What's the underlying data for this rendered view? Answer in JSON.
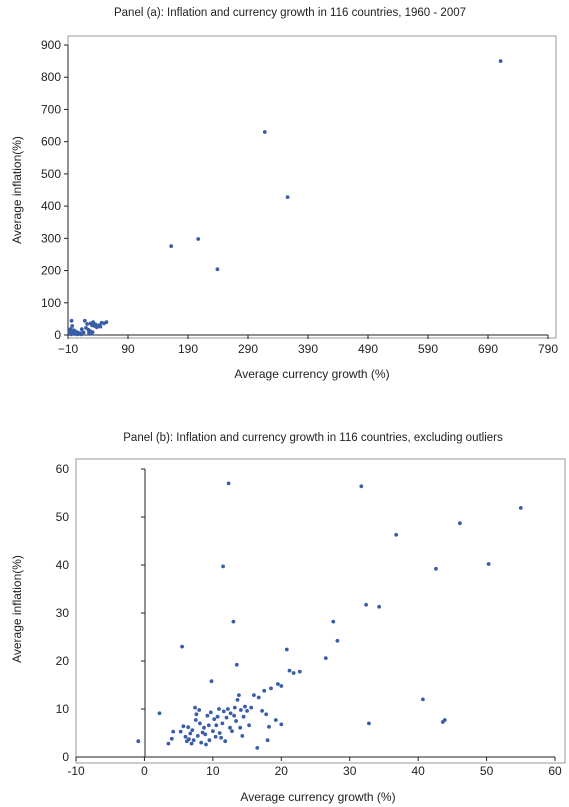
{
  "chart_data": [
    {
      "type": "scatter",
      "title": "Panel (a): Inflation and currency growth in 116 countries, 1960 - 2007",
      "xlabel": "Average currency growth (%)",
      "ylabel": "Average inflation(%)",
      "xlim": [
        -10,
        790
      ],
      "ylim": [
        0,
        900
      ],
      "xticks": [
        "−10",
        "90",
        "190",
        "290",
        "390",
        "490",
        "590",
        "690",
        "790"
      ],
      "yticks": [
        "0",
        "100",
        "200",
        "300",
        "400",
        "500",
        "600",
        "700",
        "800",
        "900"
      ],
      "marker_color": "#3a5da8",
      "points": [
        [
          711,
          850
        ],
        [
          318,
          630
        ],
        [
          356,
          428
        ],
        [
          207,
          298
        ],
        [
          162,
          276
        ],
        [
          239,
          204
        ],
        [
          -4,
          44
        ],
        [
          -3,
          28
        ],
        [
          -6,
          18
        ],
        [
          -8,
          10
        ],
        [
          -7,
          5
        ],
        [
          -5,
          2
        ],
        [
          -2,
          8
        ],
        [
          -1,
          15
        ],
        [
          0,
          3
        ],
        [
          2,
          12
        ],
        [
          3,
          5
        ],
        [
          5,
          2
        ],
        [
          6,
          8
        ],
        [
          8,
          3
        ],
        [
          10,
          6
        ],
        [
          12,
          2
        ],
        [
          13,
          18
        ],
        [
          14,
          5
        ],
        [
          16,
          8
        ],
        [
          18,
          44
        ],
        [
          20,
          22
        ],
        [
          22,
          34
        ],
        [
          24,
          16
        ],
        [
          25,
          7
        ],
        [
          26,
          3
        ],
        [
          28,
          36
        ],
        [
          30,
          30
        ],
        [
          32,
          40
        ],
        [
          34,
          28
        ],
        [
          36,
          33
        ],
        [
          38,
          24
        ],
        [
          42,
          30
        ],
        [
          44,
          26
        ],
        [
          46,
          38
        ],
        [
          50,
          36
        ],
        [
          54,
          40
        ],
        [
          27,
          12
        ],
        [
          31,
          9
        ],
        [
          29,
          4
        ]
      ]
    },
    {
      "type": "scatter",
      "title": "Panel (b): Inflation and currency growth in 116 countries, excluding outliers",
      "xlabel": "Average currency growth (%)",
      "ylabel": "Average inflation(%)",
      "xlim": [
        -10,
        60
      ],
      "ylim": [
        0,
        60
      ],
      "xticks": [
        "-10",
        "0",
        "10",
        "20",
        "30",
        "40",
        "50",
        "60"
      ],
      "yticks": [
        "0",
        "10",
        "20",
        "30",
        "40",
        "50",
        "60"
      ],
      "marker_color": "#3a5da8",
      "points": [
        [
          -0.9,
          3.3
        ],
        [
          2.2,
          9.1
        ],
        [
          3.5,
          2.8
        ],
        [
          4.0,
          3.8
        ],
        [
          4.2,
          5.3
        ],
        [
          5.3,
          5.3
        ],
        [
          5.5,
          23.0
        ],
        [
          5.7,
          6.4
        ],
        [
          6.0,
          4.2
        ],
        [
          6.2,
          3.3
        ],
        [
          6.4,
          6.2
        ],
        [
          6.5,
          3.7
        ],
        [
          6.7,
          4.9
        ],
        [
          6.9,
          2.8
        ],
        [
          7.0,
          5.6
        ],
        [
          7.2,
          3.5
        ],
        [
          7.4,
          10.3
        ],
        [
          7.5,
          7.7
        ],
        [
          7.6,
          8.9
        ],
        [
          7.8,
          4.4
        ],
        [
          8.0,
          9.8
        ],
        [
          8.1,
          7.0
        ],
        [
          8.3,
          3.0
        ],
        [
          8.5,
          5.1
        ],
        [
          8.7,
          6.1
        ],
        [
          8.9,
          4.7
        ],
        [
          9.0,
          2.6
        ],
        [
          9.2,
          8.6
        ],
        [
          9.4,
          6.6
        ],
        [
          9.5,
          3.5
        ],
        [
          9.7,
          9.3
        ],
        [
          9.8,
          15.8
        ],
        [
          10.0,
          5.4
        ],
        [
          10.2,
          7.9
        ],
        [
          10.4,
          4.2
        ],
        [
          10.5,
          6.6
        ],
        [
          10.7,
          8.4
        ],
        [
          10.9,
          10.0
        ],
        [
          11.0,
          5.0
        ],
        [
          11.2,
          4.0
        ],
        [
          11.4,
          7.0
        ],
        [
          11.5,
          39.7
        ],
        [
          11.6,
          9.5
        ],
        [
          11.8,
          3.3
        ],
        [
          12.0,
          8.2
        ],
        [
          12.2,
          10.0
        ],
        [
          12.3,
          57.0
        ],
        [
          12.5,
          6.1
        ],
        [
          12.6,
          9.1
        ],
        [
          12.8,
          5.4
        ],
        [
          13.0,
          28.2
        ],
        [
          13.1,
          8.6
        ],
        [
          13.2,
          10.3
        ],
        [
          13.4,
          7.5
        ],
        [
          13.5,
          19.2
        ],
        [
          13.6,
          11.9
        ],
        [
          13.8,
          12.9
        ],
        [
          14.0,
          6.1
        ],
        [
          14.1,
          9.8
        ],
        [
          14.3,
          4.4
        ],
        [
          14.5,
          8.4
        ],
        [
          14.7,
          10.5
        ],
        [
          15.0,
          9.6
        ],
        [
          15.3,
          6.6
        ],
        [
          15.6,
          10.3
        ],
        [
          16.0,
          12.9
        ],
        [
          16.5,
          1.9
        ],
        [
          16.7,
          12.4
        ],
        [
          17.2,
          9.6
        ],
        [
          17.5,
          13.8
        ],
        [
          17.8,
          8.9
        ],
        [
          18.0,
          3.5
        ],
        [
          18.2,
          6.3
        ],
        [
          18.5,
          14.3
        ],
        [
          19.2,
          7.7
        ],
        [
          19.5,
          15.2
        ],
        [
          20.0,
          6.8
        ],
        [
          20.0,
          14.8
        ],
        [
          20.8,
          22.4
        ],
        [
          21.2,
          18.0
        ],
        [
          21.8,
          17.5
        ],
        [
          22.7,
          17.8
        ],
        [
          26.5,
          20.6
        ],
        [
          27.6,
          28.2
        ],
        [
          28.2,
          24.2
        ],
        [
          31.7,
          56.4
        ],
        [
          32.4,
          31.7
        ],
        [
          32.8,
          7.0
        ],
        [
          34.3,
          31.3
        ],
        [
          36.8,
          46.3
        ],
        [
          40.7,
          12.0
        ],
        [
          42.6,
          39.2
        ],
        [
          43.6,
          7.3
        ],
        [
          43.9,
          7.7
        ],
        [
          46.1,
          48.7
        ],
        [
          50.3,
          40.2
        ],
        [
          55.0,
          51.9
        ]
      ]
    }
  ]
}
